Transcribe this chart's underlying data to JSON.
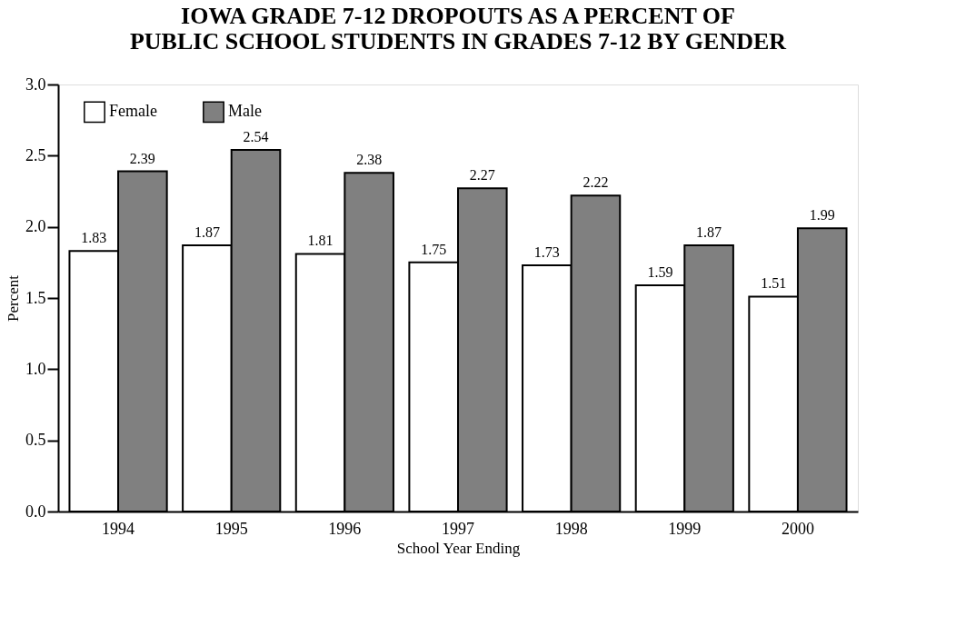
{
  "chart_data": {
    "type": "bar",
    "title": "IOWA GRADE 7-12 DROPOUTS AS A PERCENT OF\nPUBLIC SCHOOL STUDENTS IN GRADES 7-12 BY GENDER",
    "xlabel": "School Year Ending",
    "ylabel": "Percent",
    "categories": [
      "1994",
      "1995",
      "1996",
      "1997",
      "1998",
      "1999",
      "2000"
    ],
    "series": [
      {
        "name": "Female",
        "color": "#ffffff",
        "values": [
          1.83,
          1.87,
          1.81,
          1.75,
          1.73,
          1.59,
          1.51
        ]
      },
      {
        "name": "Male",
        "color": "#808080",
        "values": [
          2.39,
          2.54,
          2.38,
          2.27,
          2.22,
          1.87,
          1.99
        ]
      }
    ],
    "ylim": [
      0,
      3
    ],
    "yticks": [
      {
        "value": 0,
        "label": "0.0"
      },
      0.5,
      {
        "value": 1,
        "label": "1.0"
      },
      1.5,
      {
        "value": 2,
        "label": "2.0"
      },
      2.5,
      {
        "value": 3,
        "label": "3.0"
      }
    ],
    "data_labels": true,
    "grid": false,
    "legend": "top left"
  }
}
